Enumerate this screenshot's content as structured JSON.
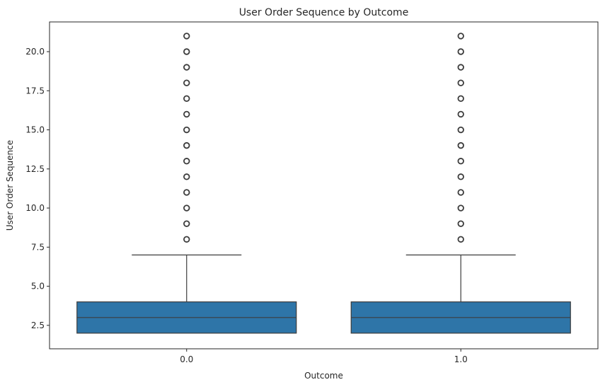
{
  "chart_data": {
    "type": "box",
    "title": "User Order Sequence by Outcome",
    "xlabel": "Outcome",
    "ylabel": "User Order Sequence",
    "categories": [
      "0.0",
      "1.0"
    ],
    "ylim": [
      1.0,
      21.9
    ],
    "yticks": [
      "2.5",
      "5.0",
      "7.5",
      "10.0",
      "12.5",
      "15.0",
      "17.5",
      "20.0"
    ],
    "ytick_values": [
      2.5,
      5.0,
      7.5,
      10.0,
      12.5,
      15.0,
      17.5,
      20.0
    ],
    "grid": false,
    "box_color": "#2e75a8",
    "line_color": "#3d3d3d",
    "boxes": [
      {
        "category": "0.0",
        "whisker_low": 2,
        "q1": 2,
        "median": 3,
        "q3": 4,
        "whisker_high": 7,
        "outliers": [
          8,
          9,
          10,
          11,
          12,
          13,
          14,
          15,
          16,
          17,
          18,
          19,
          20,
          21
        ]
      },
      {
        "category": "1.0",
        "whisker_low": 2,
        "q1": 2,
        "median": 3,
        "q3": 4,
        "whisker_high": 7,
        "outliers": [
          8,
          9,
          10,
          11,
          12,
          13,
          14,
          15,
          16,
          17,
          18,
          19,
          20,
          21
        ]
      }
    ]
  }
}
